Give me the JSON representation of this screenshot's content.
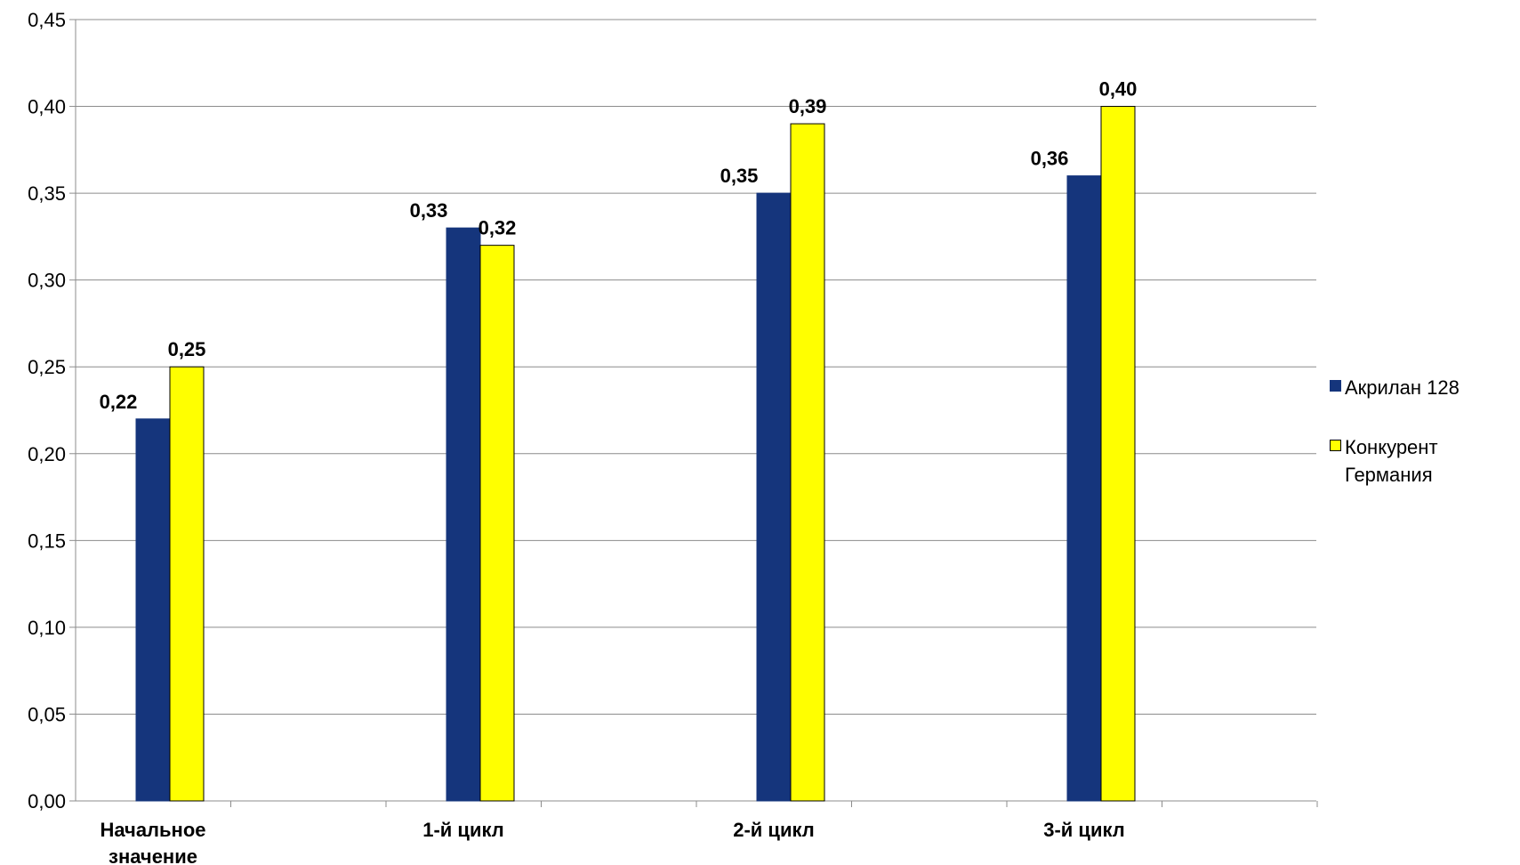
{
  "chart_data": {
    "type": "bar",
    "categories": [
      "Начальное значение",
      "1-й цикл",
      "2-й цикл",
      "3-й цикл"
    ],
    "category_lines": [
      [
        "Начальное",
        "значение"
      ],
      [
        "1-й цикл"
      ],
      [
        "2-й цикл"
      ],
      [
        "3-й цикл"
      ]
    ],
    "series": [
      {
        "name": "Акрилан 128",
        "color": "#15357c",
        "values": [
          0.22,
          0.33,
          0.35,
          0.36
        ],
        "labels": [
          "0,22",
          "0,33",
          "0,35",
          "0,36"
        ]
      },
      {
        "name": "Конкурент Германия",
        "color": "#ffff00",
        "values": [
          0.25,
          0.32,
          0.39,
          0.4
        ],
        "labels": [
          "0,25",
          "0,32",
          "0,39",
          "0,40"
        ]
      }
    ],
    "ylim": [
      0,
      0.45
    ],
    "y_ticks": [
      0,
      0.05,
      0.1,
      0.15,
      0.2,
      0.25,
      0.3,
      0.35,
      0.4,
      0.45
    ],
    "y_tick_labels": [
      "0,00",
      "0,05",
      "0,10",
      "0,15",
      "0,20",
      "0,25",
      "0,30",
      "0,35",
      "0,40",
      "0,45"
    ],
    "grid": true,
    "legend_position": "right",
    "title": "",
    "xlabel": "",
    "ylabel": ""
  }
}
